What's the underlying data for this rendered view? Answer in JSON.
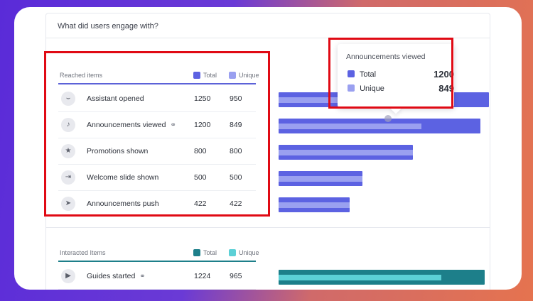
{
  "card": {
    "title": "What did users engage with?"
  },
  "reached": {
    "label": "Reached items",
    "legend_total": "Total",
    "legend_unique": "Unique",
    "colors": {
      "total": "#5c62e2",
      "unique": "#9aa0f0"
    },
    "items": [
      {
        "icon": "magnet-icon",
        "glyph": "⌣",
        "label": "Assistant opened",
        "link": "",
        "total": "1250",
        "unique": "950"
      },
      {
        "icon": "bell-icon",
        "glyph": "♪",
        "label": "Announcements viewed",
        "link": "⚭",
        "total": "1200",
        "unique": "849"
      },
      {
        "icon": "star-icon",
        "glyph": "★",
        "label": "Promotions shown",
        "link": "",
        "total": "800",
        "unique": "800"
      },
      {
        "icon": "slide-icon",
        "glyph": "⇥",
        "label": "Welcome slide shown",
        "link": "",
        "total": "500",
        "unique": "500"
      },
      {
        "icon": "send-icon",
        "glyph": "➤",
        "label": "Announcements push",
        "link": "",
        "total": "422",
        "unique": "422"
      }
    ]
  },
  "interacted": {
    "label": "Interacted Items",
    "legend_total": "Total",
    "legend_unique": "Unique",
    "colors": {
      "total": "#1d7f8a",
      "unique": "#5cd0d6"
    },
    "items": [
      {
        "icon": "play-icon",
        "glyph": "▶",
        "label": "Guides started",
        "link": "⚭",
        "total": "1224",
        "unique": "965"
      }
    ]
  },
  "tooltip": {
    "title": "Announcements viewed",
    "total_label": "Total",
    "total_value": "1200",
    "unique_label": "Unique",
    "unique_value": "849"
  }
}
